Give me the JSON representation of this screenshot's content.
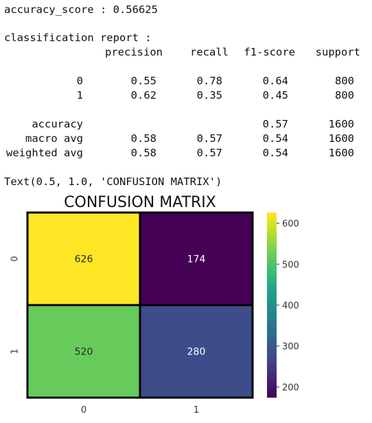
{
  "output": {
    "accuracy_line": "accuracy_score : 0.56625",
    "report_title": "classification report :",
    "report_header": [
      "precision",
      "recall",
      "f1-score",
      "support"
    ],
    "report_rows": [
      {
        "label": "0",
        "values": [
          0.55,
          0.78,
          0.64,
          800
        ]
      },
      {
        "label": "1",
        "values": [
          0.62,
          0.35,
          0.45,
          800
        ]
      },
      {
        "label": "accuracy",
        "values": [
          null,
          null,
          0.57,
          1600
        ]
      },
      {
        "label": "macro avg",
        "values": [
          0.58,
          0.57,
          0.54,
          1600
        ]
      },
      {
        "label": "weighted avg",
        "values": [
          0.58,
          0.57,
          0.54,
          1600
        ]
      }
    ],
    "text_repr": "Text(0.5, 1.0, 'CONFUSION MATRIX')"
  },
  "chart_data": {
    "type": "heatmap",
    "title": "CONFUSION MATRIX",
    "x_categories": [
      "0",
      "1"
    ],
    "y_categories": [
      "0",
      "1"
    ],
    "values": [
      [
        626,
        174
      ],
      [
        520,
        280
      ]
    ],
    "colormap": "viridis",
    "clim": [
      174,
      626
    ],
    "colorbar_ticks": [
      200,
      300,
      400,
      500,
      600
    ]
  }
}
